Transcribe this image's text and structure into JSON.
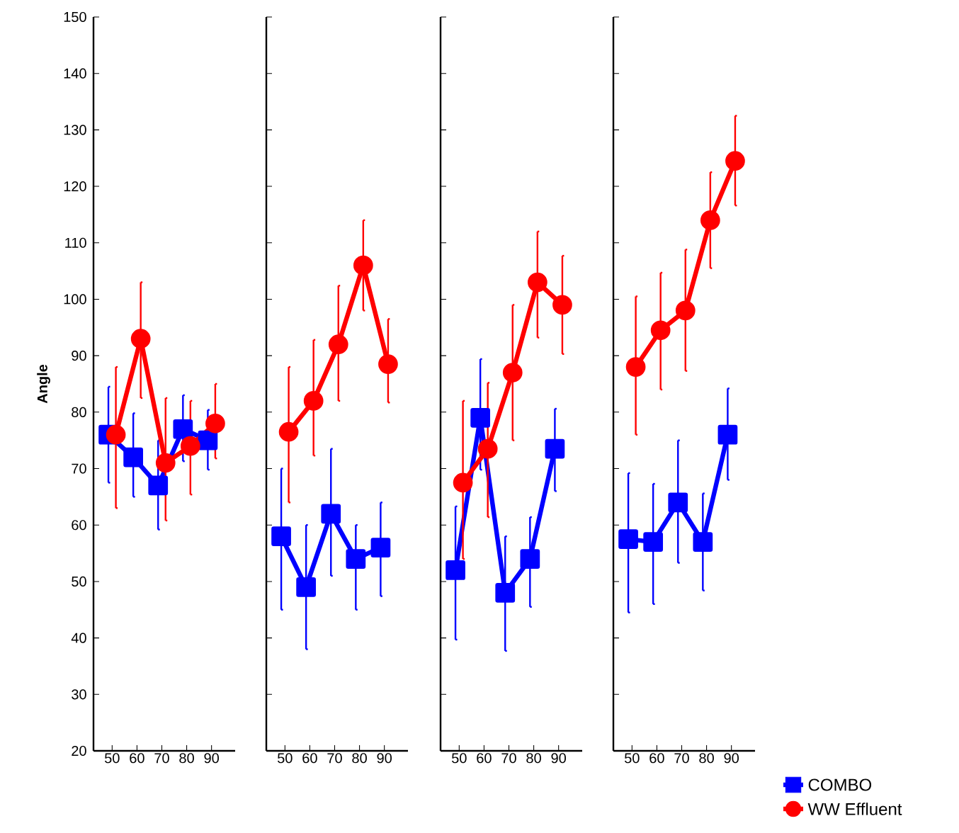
{
  "chart_data": [
    {
      "type": "line",
      "ylabel": "Angle",
      "categories": [
        "50",
        "60",
        "70",
        "80",
        "90"
      ],
      "ylim": [
        20,
        150
      ],
      "yticks": [
        20,
        30,
        40,
        50,
        60,
        70,
        80,
        90,
        100,
        110,
        120,
        130,
        140,
        150
      ],
      "series": [
        {
          "color": "#0000ff",
          "marker": "square",
          "values": [
            76,
            72,
            67,
            77,
            75
          ],
          "errors": [
            [
              67.5,
              84.5
            ],
            [
              65,
              79.8
            ],
            [
              59.2,
              75
            ],
            [
              71.3,
              83
            ],
            [
              69.8,
              80.4
            ]
          ]
        },
        {
          "color": "#ff0000",
          "marker": "circle",
          "values": [
            76,
            93,
            71,
            74,
            78
          ],
          "errors": [
            [
              63,
              88
            ],
            [
              82.5,
              103
            ],
            [
              60.8,
              82.5
            ],
            [
              65.4,
              82
            ],
            [
              71.8,
              85
            ]
          ]
        }
      ]
    },
    {
      "type": "line",
      "categories": [
        "50",
        "60",
        "70",
        "80",
        "90"
      ],
      "ylim": [
        20,
        150
      ],
      "yticks": [
        20,
        30,
        40,
        50,
        60,
        70,
        80,
        90,
        100,
        110,
        120,
        130,
        140,
        150
      ],
      "tick_labels": "x",
      "series": [
        {
          "color": "#0000ff",
          "marker": "square",
          "values": [
            58,
            49,
            62,
            54,
            56
          ],
          "errors": [
            [
              45,
              70
            ],
            [
              38,
              60
            ],
            [
              51,
              73.5
            ],
            [
              45,
              60
            ],
            [
              47.4,
              64
            ]
          ]
        },
        {
          "color": "#ff0000",
          "marker": "circle",
          "values": [
            76.5,
            82,
            92,
            106,
            88.5
          ],
          "errors": [
            [
              64,
              88
            ],
            [
              72.3,
              92.8
            ],
            [
              82,
              102.4
            ],
            [
              98,
              114
            ],
            [
              81.7,
              96.5
            ]
          ]
        }
      ]
    },
    {
      "type": "line",
      "categories": [
        "50",
        "60",
        "70",
        "80",
        "90"
      ],
      "ylim": [
        20,
        150
      ],
      "yticks": [
        20,
        30,
        40,
        50,
        60,
        70,
        80,
        90,
        100,
        110,
        120,
        130,
        140,
        150
      ],
      "tick_labels": "x",
      "series": [
        {
          "color": "#0000ff",
          "marker": "square",
          "values": [
            52,
            79,
            48,
            54,
            73.5
          ],
          "errors": [
            [
              39.7,
              63.3
            ],
            [
              69.8,
              89.4
            ],
            [
              37.7,
              58
            ],
            [
              45.5,
              61.4
            ],
            [
              66,
              80.6
            ]
          ]
        },
        {
          "color": "#ff0000",
          "marker": "circle",
          "values": [
            67.5,
            73.5,
            87,
            103,
            99
          ],
          "errors": [
            [
              54,
              82
            ],
            [
              61.4,
              85.2
            ],
            [
              75,
              99
            ],
            [
              93.2,
              112
            ],
            [
              90.3,
              107.7
            ]
          ]
        }
      ]
    },
    {
      "type": "line",
      "categories": [
        "50",
        "60",
        "70",
        "80",
        "90"
      ],
      "ylim": [
        20,
        150
      ],
      "yticks": [
        20,
        30,
        40,
        50,
        60,
        70,
        80,
        90,
        100,
        110,
        120,
        130,
        140,
        150
      ],
      "tick_labels": "x",
      "legend": "bottom right",
      "series": [
        {
          "name": "COMBO",
          "color": "#0000ff",
          "marker": "square",
          "values": [
            57.5,
            57,
            64,
            57,
            76
          ],
          "errors": [
            [
              44.5,
              69.2
            ],
            [
              46,
              67.3
            ],
            [
              53.3,
              75
            ],
            [
              48.4,
              65.6
            ],
            [
              68,
              84.2
            ]
          ]
        },
        {
          "name": "WW Effluent",
          "color": "#ff0000",
          "marker": "circle",
          "values": [
            88,
            94.5,
            98,
            114,
            124.5
          ],
          "errors": [
            [
              76,
              100.5
            ],
            [
              84,
              104.7
            ],
            [
              87.3,
              108.8
            ],
            [
              105.5,
              122.5
            ],
            [
              116.6,
              132.5
            ]
          ]
        }
      ]
    }
  ]
}
